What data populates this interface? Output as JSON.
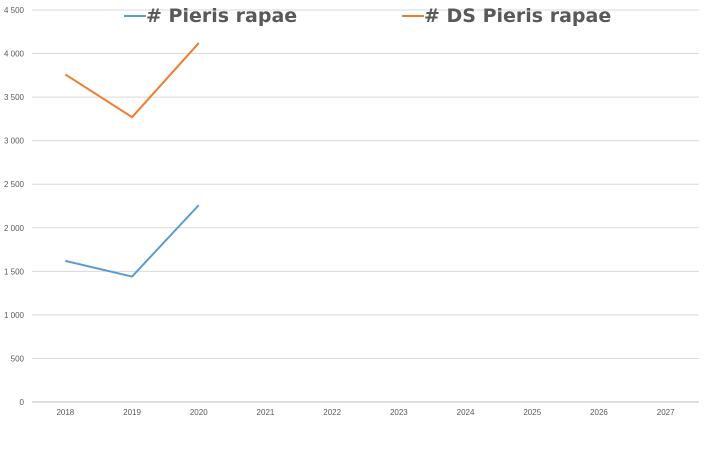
{
  "chart_data": {
    "type": "line",
    "categories": [
      "2018",
      "2019",
      "2020",
      "2021",
      "2022",
      "2023",
      "2024",
      "2025",
      "2026",
      "2027"
    ],
    "y_tick_labels": [
      "0",
      "500",
      "1 000",
      "1 500",
      "2 000",
      "2 500",
      "3 000",
      "3 500",
      "4 000",
      "4 500"
    ],
    "ylim": [
      0,
      4500
    ],
    "grid": true,
    "legend_position": "top",
    "series": [
      {
        "name": "# Pieris rapae",
        "color": "#5B9BD5",
        "values": [
          1620,
          1440,
          2260,
          null,
          null,
          null,
          null,
          null,
          null,
          null
        ]
      },
      {
        "name": "# DS Pieris rapae",
        "color": "#ED7D31",
        "values": [
          3760,
          3270,
          4120,
          null,
          null,
          null,
          null,
          null,
          null,
          null
        ]
      }
    ]
  }
}
